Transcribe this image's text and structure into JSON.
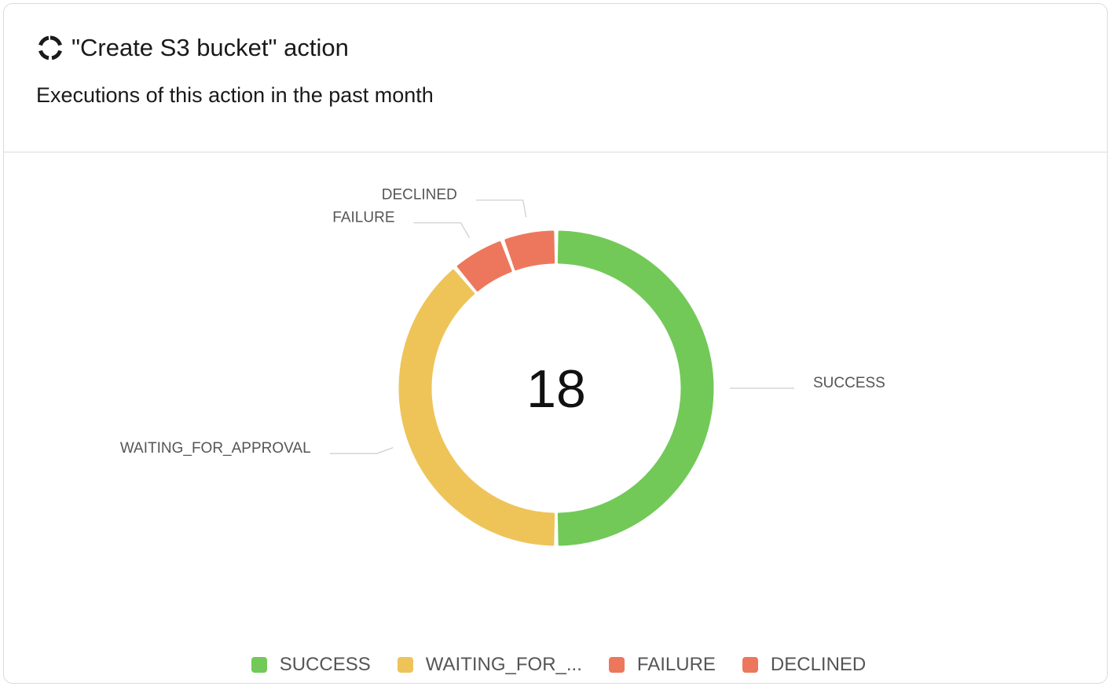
{
  "header": {
    "icon": "loading-circle-icon",
    "title": "\"Create S3 bucket\" action",
    "subtitle": "Executions of this action in the past month"
  },
  "chart_data": {
    "type": "pie",
    "variant": "donut",
    "total_label": "18",
    "categories": [
      "SUCCESS",
      "WAITING_FOR_APPROVAL",
      "FAILURE",
      "DECLINED"
    ],
    "values": [
      9,
      7,
      1,
      1
    ],
    "colors": [
      "#72c958",
      "#eec459",
      "#ed775d",
      "#ed775d"
    ],
    "legend": {
      "placement": "bottom",
      "labels": [
        "SUCCESS",
        "WAITING_FOR_...",
        "FAILURE",
        "DECLINED"
      ]
    }
  }
}
